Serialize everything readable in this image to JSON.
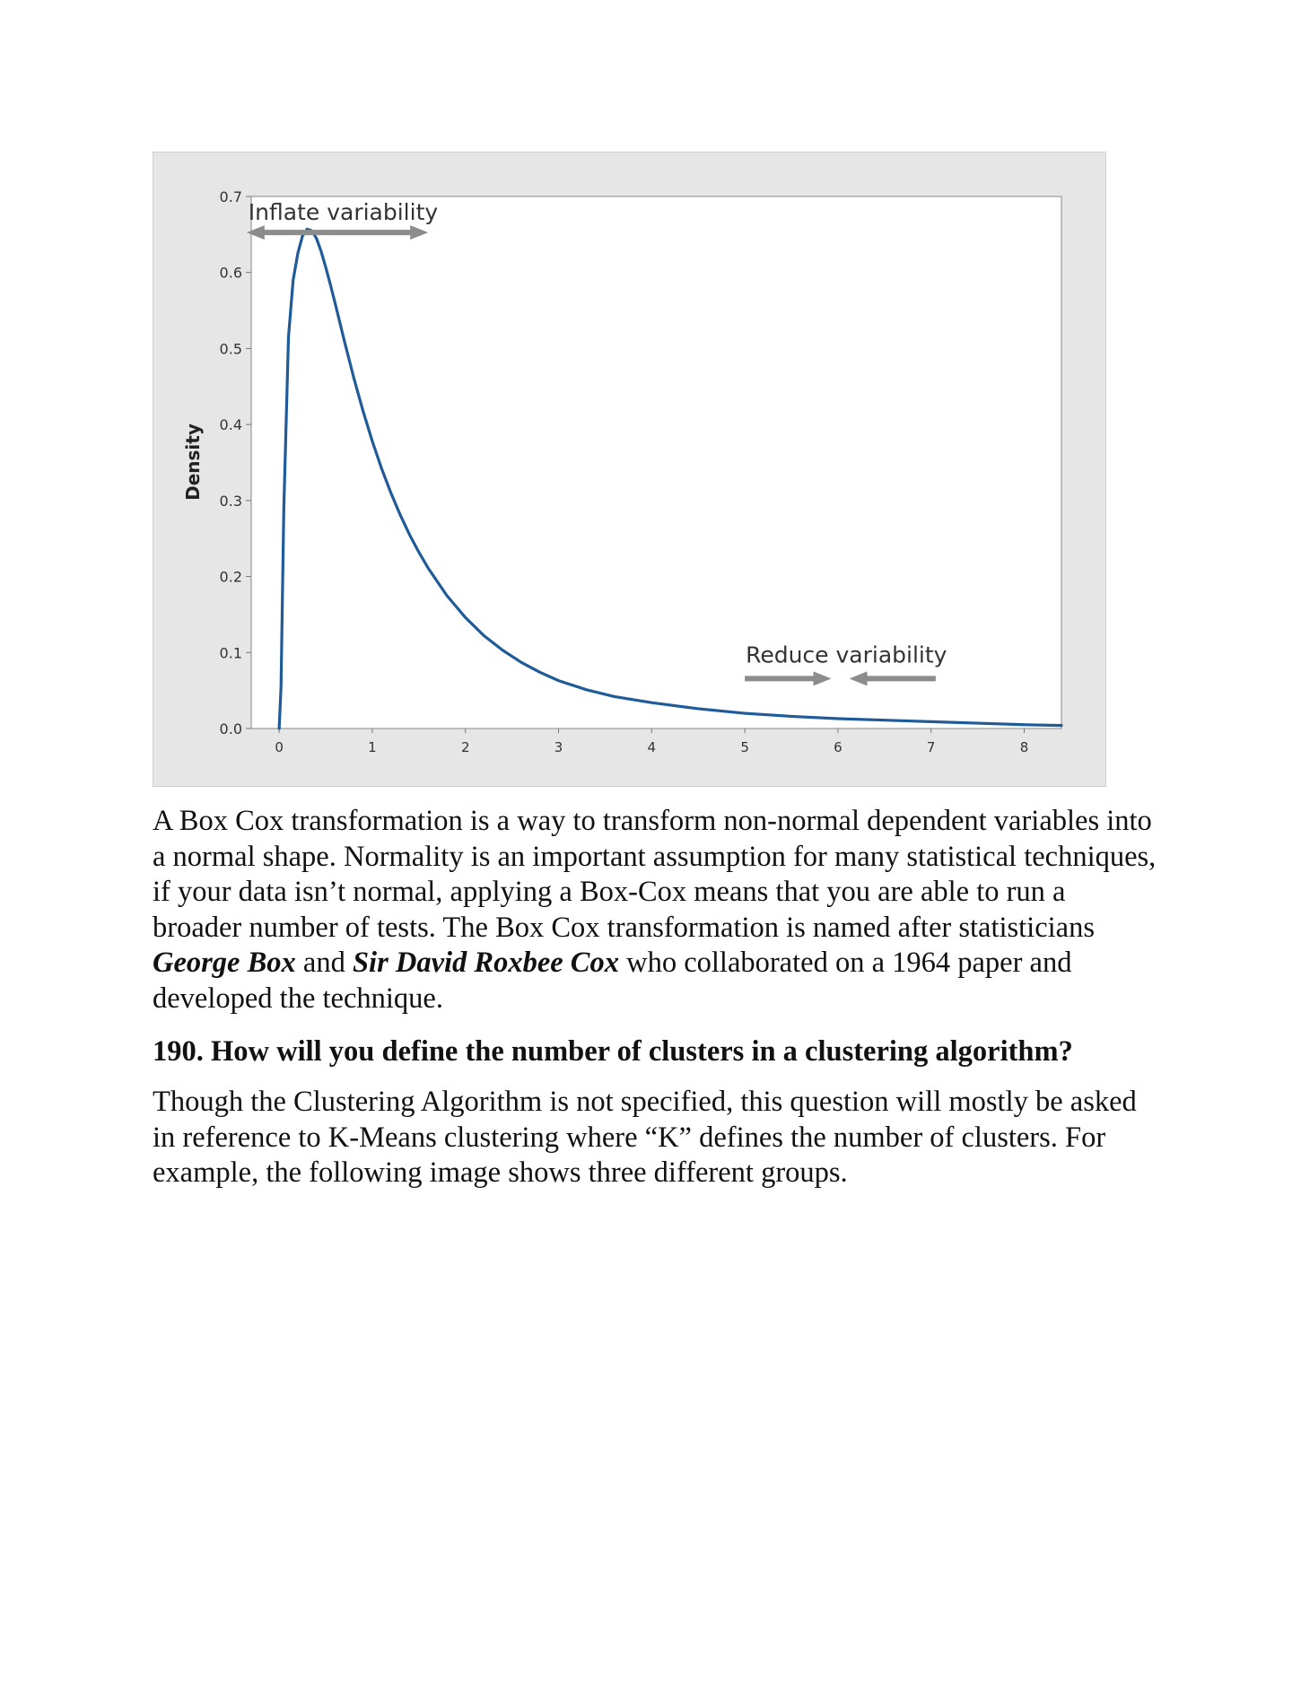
{
  "chart_data": {
    "type": "line",
    "title": "",
    "xlabel": "",
    "ylabel": "Density",
    "xlim": [
      -0.3,
      8.4
    ],
    "ylim": [
      0.0,
      0.7
    ],
    "x_ticks": [
      "0",
      "1",
      "2",
      "3",
      "4",
      "5",
      "6",
      "7",
      "8"
    ],
    "y_ticks": [
      "0.0",
      "0.1",
      "0.2",
      "0.3",
      "0.4",
      "0.5",
      "0.6",
      "0.7"
    ],
    "grid": false,
    "colors": {
      "line": "#1f5b99",
      "annotation": "#8c8c8c",
      "frame_bg": "#e6e6e6"
    },
    "series": [
      {
        "x": [
          0.0,
          0.02,
          0.05,
          0.1,
          0.15,
          0.2,
          0.25,
          0.3,
          0.35,
          0.4,
          0.45,
          0.5,
          0.55,
          0.6,
          0.7,
          0.8,
          0.9,
          1.0,
          1.1,
          1.2,
          1.3,
          1.4,
          1.5,
          1.6,
          1.8,
          2.0,
          2.2,
          2.4,
          2.6,
          2.8,
          3.0,
          3.3,
          3.6,
          4.0,
          4.5,
          5.0,
          5.5,
          6.0,
          6.5,
          7.0,
          7.5,
          8.0,
          8.4
        ],
        "y": [
          0.0,
          0.055,
          0.29,
          0.515,
          0.59,
          0.625,
          0.648,
          0.657,
          0.655,
          0.645,
          0.628,
          0.607,
          0.584,
          0.56,
          0.51,
          0.462,
          0.418,
          0.378,
          0.342,
          0.31,
          0.281,
          0.255,
          0.232,
          0.211,
          0.175,
          0.146,
          0.122,
          0.103,
          0.087,
          0.074,
          0.063,
          0.051,
          0.042,
          0.034,
          0.026,
          0.02,
          0.016,
          0.013,
          0.011,
          0.009,
          0.007,
          0.005,
          0.004
        ]
      }
    ],
    "annotations": [
      {
        "text": "Inflate variability",
        "arrow": "double-headed",
        "x_range": [
          -0.35,
          1.6
        ],
        "y": 0.655
      },
      {
        "text": "Reduce variability",
        "arrow": "two arrows pointing inward",
        "x_range": [
          5.0,
          7.05
        ],
        "y": 0.068
      }
    ]
  },
  "body": {
    "para1_a": "A Box Cox transformation is a way to transform non-normal dependent variables into a normal shape. Normality is an important assumption for many statistical techniques, if your data isn’t normal, applying a Box-Cox means that you are able to run a broader number of tests. The Box Cox transformation is named after statisticians ",
    "name1": "George Box",
    "para1_b": " and ",
    "name2": "Sir David Roxbee Cox",
    "para1_c": " who collaborated on a 1964 paper and developed the technique.",
    "heading": "190. How will you define the number of clusters in a clustering algorithm?",
    "para2": "Though the Clustering Algorithm is not specified, this question will mostly be asked in reference to K-Means clustering where “K” defines the number of clusters. For example, the following image shows three different groups."
  }
}
